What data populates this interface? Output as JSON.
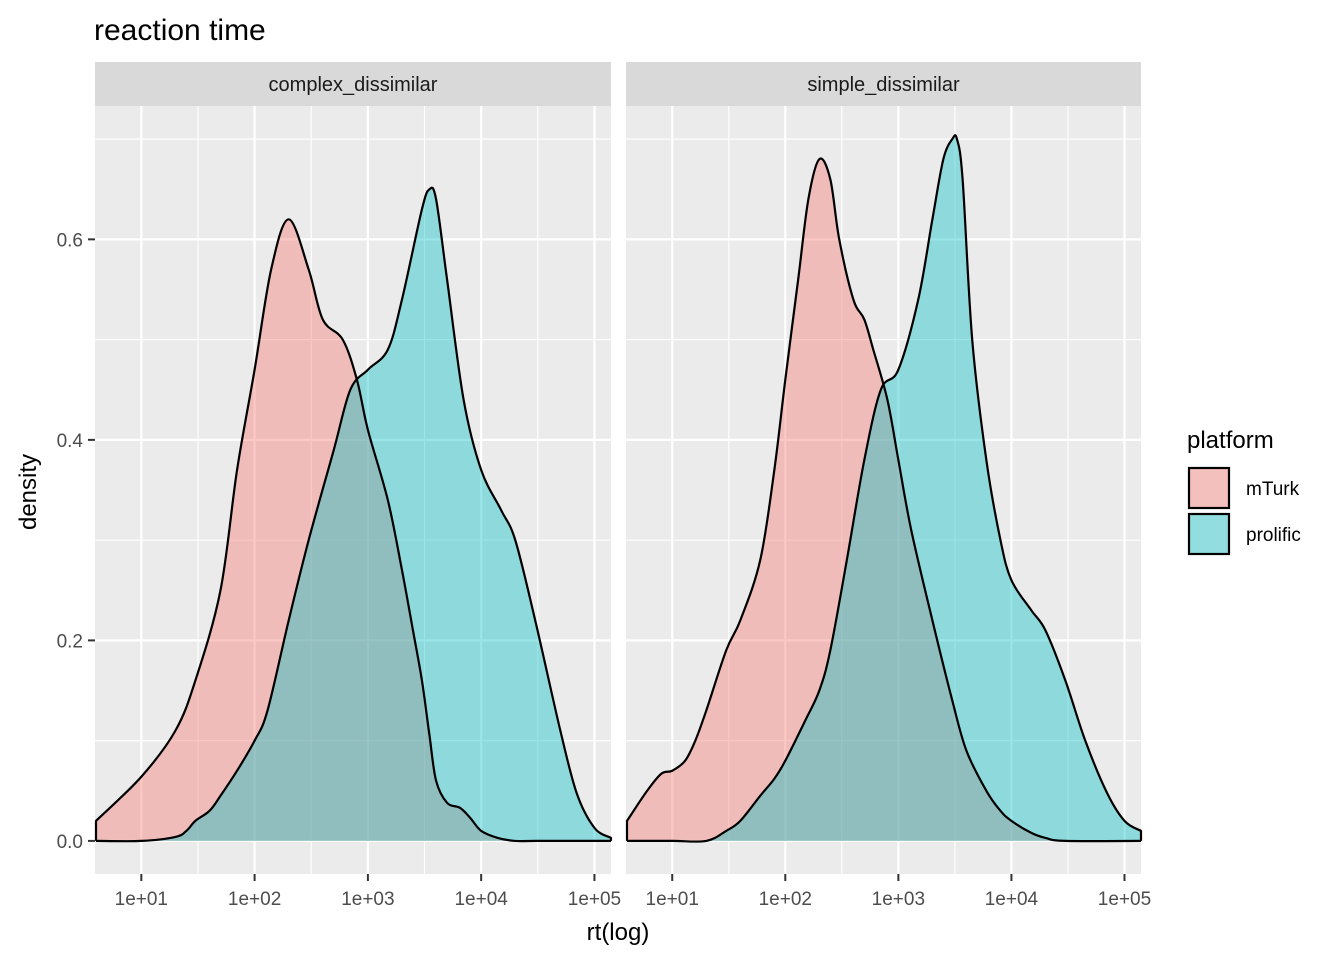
{
  "chart_data": {
    "type": "area",
    "title": "reaction time",
    "xlabel": "rt(log)",
    "ylabel": "density",
    "x_scale": "log10",
    "x_ticks": [
      10,
      100,
      1000,
      10000,
      100000
    ],
    "x_tick_labels": [
      "1e+01",
      "1e+02",
      "1e+03",
      "1e+04",
      "1e+05"
    ],
    "xlim": [
      3.9,
      140000
    ],
    "y_ticks": [
      0,
      0.2,
      0.4,
      0.6
    ],
    "y_tick_labels": [
      "0.0",
      "0.2",
      "0.4",
      "0.6"
    ],
    "ylim": [
      -0.033,
      0.733
    ],
    "grid": true,
    "legend": {
      "title": "platform",
      "position": "right",
      "entries": [
        {
          "name": "mTurk",
          "color": "#F8766D"
        },
        {
          "name": "prolific",
          "color": "#00BFC4"
        }
      ]
    },
    "colors": {
      "mTurk": "#F8766D",
      "prolific": "#00BFC4",
      "panel_bg": "#EBEBEB",
      "strip_bg": "#D9D9D9",
      "grid": "#FFFFFF",
      "outline": "#000000"
    },
    "fill_alpha": 0.4,
    "panels": [
      {
        "name": "complex_dissimilar",
        "series": [
          {
            "name": "mTurk",
            "x": [
              3.98,
              10,
              20,
              30,
              50,
              70,
              100,
              140,
              200,
              300,
              400,
              600,
              800,
              1000,
              1500,
              2000,
              2500,
              3000,
              3500,
              4000,
              5000,
              6500,
              8000,
              10000,
              14000,
              20000,
              30000,
              50000,
              80000,
              140000
            ],
            "y": [
              0.02,
              0.064,
              0.11,
              0.16,
              0.25,
              0.37,
              0.47,
              0.57,
              0.62,
              0.57,
              0.52,
              0.5,
              0.46,
              0.41,
              0.34,
              0.27,
              0.21,
              0.16,
              0.105,
              0.06,
              0.038,
              0.033,
              0.023,
              0.01,
              0.003,
              0,
              0,
              0,
              0,
              0
            ]
          },
          {
            "name": "prolific",
            "x": [
              3.98,
              10,
              20,
              25,
              30,
              40,
              50,
              70,
              100,
              130,
              200,
              300,
              500,
              700,
              1000,
              1500,
              2000,
              3000,
              3500,
              4000,
              5000,
              7000,
              10000,
              15000,
              20000,
              30000,
              50000,
              70000,
              100000,
              140000
            ],
            "y": [
              0,
              0,
              0.004,
              0.01,
              0.02,
              0.03,
              0.045,
              0.07,
              0.1,
              0.13,
              0.22,
              0.3,
              0.39,
              0.45,
              0.47,
              0.49,
              0.54,
              0.63,
              0.65,
              0.64,
              0.56,
              0.44,
              0.37,
              0.33,
              0.3,
              0.22,
              0.11,
              0.047,
              0.013,
              0.003
            ]
          }
        ]
      },
      {
        "name": "simple_dissimilar",
        "series": [
          {
            "name": "mTurk",
            "x": [
              3.98,
              6,
              8,
              10,
              13,
              16,
              20,
              30,
              40,
              60,
              80,
              100,
              130,
              160,
              200,
              250,
              300,
              400,
              500,
              600,
              800,
              1000,
              1300,
              2000,
              3000,
              4000,
              6000,
              8000,
              10000,
              15000,
              20000,
              30000,
              140000
            ],
            "y": [
              0.02,
              0.05,
              0.067,
              0.07,
              0.08,
              0.1,
              0.13,
              0.19,
              0.22,
              0.28,
              0.37,
              0.46,
              0.56,
              0.64,
              0.68,
              0.66,
              0.6,
              0.54,
              0.52,
              0.49,
              0.44,
              0.38,
              0.31,
              0.22,
              0.14,
              0.09,
              0.05,
              0.03,
              0.02,
              0.008,
              0.003,
              0,
              0
            ]
          },
          {
            "name": "prolific",
            "x": [
              3.98,
              10,
              20,
              30,
              40,
              60,
              80,
              100,
              150,
              200,
              250,
              350,
              500,
              700,
              1000,
              1500,
              2000,
              2500,
              3000,
              3300,
              3700,
              4500,
              6000,
              8000,
              10000,
              15000,
              20000,
              30000,
              45000,
              70000,
              100000,
              140000
            ],
            "y": [
              0,
              0,
              0,
              0.01,
              0.02,
              0.045,
              0.062,
              0.08,
              0.12,
              0.15,
              0.19,
              0.28,
              0.38,
              0.45,
              0.47,
              0.54,
              0.62,
              0.68,
              0.7,
              0.7,
              0.66,
              0.5,
              0.38,
              0.3,
              0.26,
              0.23,
              0.21,
              0.16,
              0.1,
              0.048,
              0.02,
              0.01
            ]
          }
        ]
      }
    ]
  }
}
